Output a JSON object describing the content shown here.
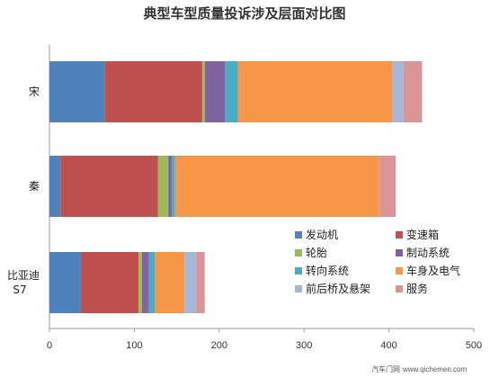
{
  "chart_data": {
    "type": "bar",
    "orientation": "horizontal",
    "stacked": true,
    "title": "典型车型质量投诉涉及层面对比图",
    "categories": [
      "宋",
      "秦",
      "比亚迪\nS7"
    ],
    "xlim": [
      0,
      500
    ],
    "xticks": [
      0,
      100,
      200,
      300,
      400,
      500
    ],
    "grid": false,
    "legend_position": "lower-right",
    "series": [
      {
        "name": "发动机",
        "color": "#4F81BD",
        "values": [
          65,
          13,
          37
        ]
      },
      {
        "name": "变速箱",
        "color": "#C0504D",
        "values": [
          115,
          115,
          68
        ]
      },
      {
        "name": "轮胎",
        "color": "#9BBB59",
        "values": [
          3,
          12,
          4
        ]
      },
      {
        "name": "制动系统",
        "color": "#8064A2",
        "values": [
          24,
          4,
          8
        ]
      },
      {
        "name": "转向系统",
        "color": "#4BACC6",
        "values": [
          15,
          4,
          7
        ]
      },
      {
        "name": "车身及电气",
        "color": "#F79646",
        "values": [
          182,
          240,
          35
        ]
      },
      {
        "name": "前后桥及悬架",
        "color": "#A5B6D9",
        "values": [
          13,
          0,
          14
        ]
      },
      {
        "name": "服务",
        "color": "#D99694",
        "values": [
          22,
          20,
          10
        ]
      }
    ]
  },
  "watermark": {
    "text": "汽车门网",
    "url": "www.qichemen.com"
  }
}
